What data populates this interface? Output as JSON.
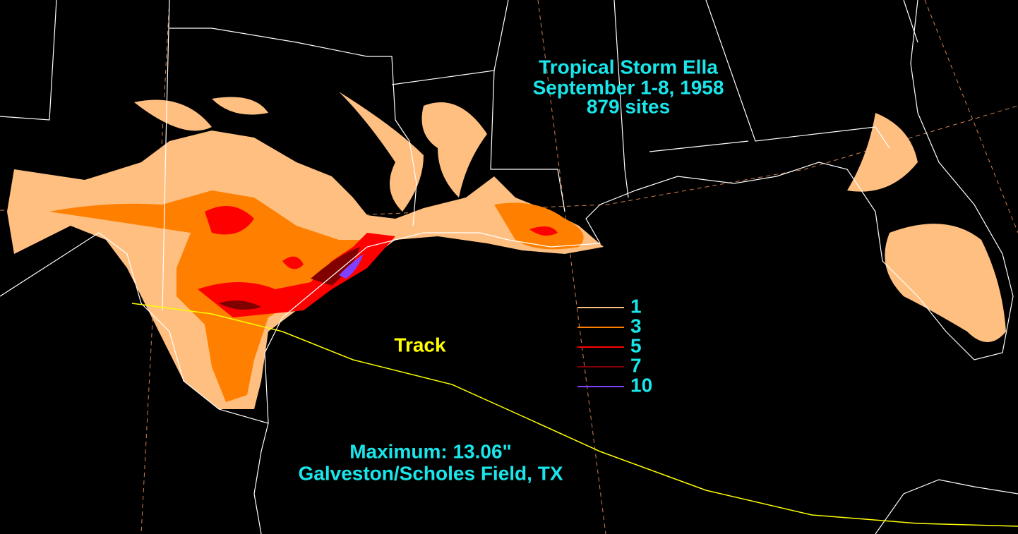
{
  "title": [
    "Tropical Storm Ella",
    "September 1-8, 1958",
    "879 sites"
  ],
  "legend": [
    {
      "label": "1",
      "color": "#ffbf80"
    },
    {
      "label": "3",
      "color": "#ff8000"
    },
    {
      "label": "5",
      "color": "#ff0000"
    },
    {
      "label": "7",
      "color": "#800000"
    },
    {
      "label": "10",
      "color": "#8040ff"
    }
  ],
  "track_label": "Track",
  "maximum": [
    "Maximum:  13.06\"",
    "Galveston/Scholes Field, TX"
  ]
}
